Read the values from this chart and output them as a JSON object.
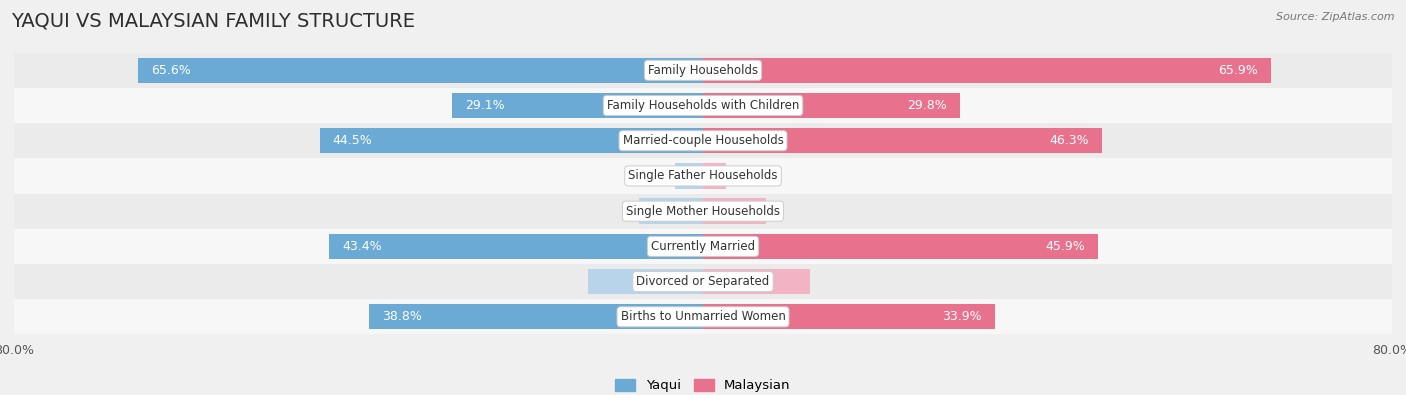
{
  "title": "YAQUI VS MALAYSIAN FAMILY STRUCTURE",
  "source": "Source: ZipAtlas.com",
  "categories": [
    "Family Households",
    "Family Households with Children",
    "Married-couple Households",
    "Single Father Households",
    "Single Mother Households",
    "Currently Married",
    "Divorced or Separated",
    "Births to Unmarried Women"
  ],
  "yaqui_values": [
    65.6,
    29.1,
    44.5,
    3.2,
    7.4,
    43.4,
    13.3,
    38.8
  ],
  "malaysian_values": [
    65.9,
    29.8,
    46.3,
    2.7,
    7.3,
    45.9,
    12.4,
    33.9
  ],
  "yaqui_color_high": "#6aaad4",
  "yaqui_color_low": "#b8d4ea",
  "malaysian_color_high": "#e8728e",
  "malaysian_color_low": "#f2b3c4",
  "label_color_white": "#ffffff",
  "label_color_dark": "#555555",
  "high_threshold": 20.0,
  "x_max": 80.0,
  "x_min": -80.0,
  "background_color": "#f0f0f0",
  "row_bg_even": "#ebebeb",
  "row_bg_odd": "#f7f7f7",
  "legend_labels": [
    "Yaqui",
    "Malaysian"
  ],
  "bar_height": 0.72,
  "title_fontsize": 14,
  "label_fontsize": 9,
  "category_fontsize": 8.5,
  "tick_fontsize": 9,
  "source_fontsize": 8
}
